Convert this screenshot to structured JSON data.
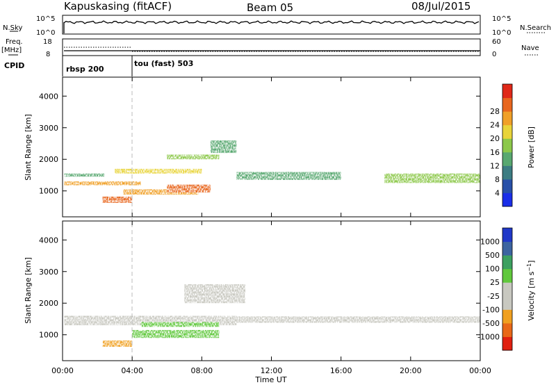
{
  "header": {
    "station": "Kapuskasing (fitACF)",
    "beam": "Beam 05",
    "date": "08/Jul/2015"
  },
  "strips": {
    "nsky_label": "N.Sky",
    "nsky_ticks": [
      "10^5",
      "10^0"
    ],
    "nsearch_label": "N.Search",
    "nsearch_ticks": [
      "10^5",
      "10^0"
    ],
    "freq_label_1": "Freq.",
    "freq_label_2": "[MHz]",
    "freq_ticks": [
      "18",
      "8"
    ],
    "nave_label": "Nave",
    "nave_ticks": [
      "60",
      "0"
    ],
    "cpid_label": "CPID",
    "cpid_modes": [
      {
        "name": "rbsp",
        "id": "200"
      },
      {
        "name": "tou (fast)",
        "id": "503"
      }
    ]
  },
  "chart_data": [
    {
      "type": "heatmap",
      "panel": "power",
      "ylabel": "Slant Range [km]",
      "yticks": [
        "1000",
        "2000",
        "3000",
        "4000"
      ],
      "ylim": [
        180,
        4600
      ],
      "xlim_hours": [
        0,
        24
      ],
      "colorbar": {
        "label": "Power [dB]",
        "ticks": [
          "4",
          "8",
          "12",
          "16",
          "20",
          "24",
          "28"
        ],
        "colors": [
          "#1a2ee8",
          "#2850a8",
          "#3c7c82",
          "#58a870",
          "#8cc84a",
          "#e8d43a",
          "#f0a028",
          "#e8661e",
          "#e02818"
        ]
      },
      "echo_bands": [
        {
          "from_hr": 0.1,
          "to_hr": 2.4,
          "range_km": [
            1450,
            1550
          ],
          "level_db": 12
        },
        {
          "from_hr": 0.1,
          "to_hr": 4.5,
          "range_km": [
            1180,
            1300
          ],
          "level_db": 24
        },
        {
          "from_hr": 2.3,
          "to_hr": 4.0,
          "range_km": [
            620,
            820
          ],
          "level_db": 28
        },
        {
          "from_hr": 3.5,
          "to_hr": 7.8,
          "range_km": [
            880,
            1050
          ],
          "level_db": 22
        },
        {
          "from_hr": 6.0,
          "to_hr": 8.5,
          "range_km": [
            950,
            1200
          ],
          "level_db": 28
        },
        {
          "from_hr": 3.0,
          "to_hr": 8.0,
          "range_km": [
            1550,
            1700
          ],
          "level_db": 20
        },
        {
          "from_hr": 6.0,
          "to_hr": 9.0,
          "range_km": [
            2000,
            2150
          ],
          "level_db": 16
        },
        {
          "from_hr": 8.5,
          "to_hr": 10.0,
          "range_km": [
            2200,
            2600
          ],
          "level_db": 12
        },
        {
          "from_hr": 10.0,
          "to_hr": 16.0,
          "range_km": [
            1350,
            1600
          ],
          "level_db": 12
        },
        {
          "from_hr": 18.5,
          "to_hr": 24.0,
          "range_km": [
            1250,
            1550
          ],
          "level_db": 16
        }
      ]
    },
    {
      "type": "heatmap",
      "panel": "velocity",
      "ylabel": "Slant Range [km]",
      "yticks": [
        "1000",
        "2000",
        "3000",
        "4000"
      ],
      "ylim": [
        180,
        4600
      ],
      "xlim_hours": [
        0,
        24
      ],
      "colorbar": {
        "label": "Velocity [m s^-1]",
        "ticks": [
          "1000",
          "500",
          "100",
          "25",
          "-25",
          "-100",
          "-500",
          "-1000"
        ],
        "colors": [
          "#2038c8",
          "#3c64a0",
          "#3ca060",
          "#60c83c",
          "#c8c8c0",
          "#c8c8c0",
          "#f0a020",
          "#e86818",
          "#e02010"
        ]
      },
      "echo_bands": [
        {
          "from_hr": 0.1,
          "to_hr": 10.0,
          "range_km": [
            1300,
            1600
          ],
          "velocity": 0
        },
        {
          "from_hr": 2.3,
          "to_hr": 4.0,
          "range_km": [
            620,
            820
          ],
          "velocity": -80
        },
        {
          "from_hr": 4.0,
          "to_hr": 9.0,
          "range_km": [
            900,
            1150
          ],
          "velocity": 60
        },
        {
          "from_hr": 4.5,
          "to_hr": 9.0,
          "range_km": [
            1250,
            1400
          ],
          "velocity": 90
        },
        {
          "from_hr": 7.0,
          "to_hr": 10.5,
          "range_km": [
            2000,
            2600
          ],
          "velocity": 0
        },
        {
          "from_hr": 10.0,
          "to_hr": 24.0,
          "range_km": [
            1380,
            1580
          ],
          "velocity": 0
        }
      ]
    }
  ],
  "time_axis": {
    "label": "Time UT",
    "ticks": [
      "00:00",
      "04:00",
      "08:00",
      "12:00",
      "16:00",
      "20:00",
      "00:00"
    ]
  }
}
